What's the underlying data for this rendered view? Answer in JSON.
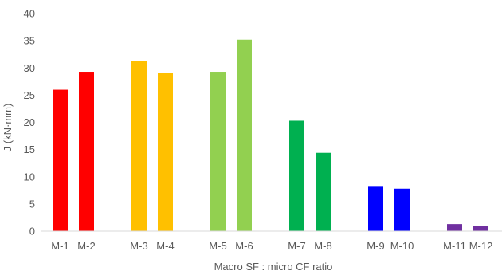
{
  "chart_data": {
    "type": "bar",
    "title": "",
    "xlabel": "Macro SF : micro CF ratio",
    "ylabel": "J (kN·mm)",
    "ylim": [
      0,
      40
    ],
    "yticks": [
      0,
      5,
      10,
      15,
      20,
      25,
      30,
      35,
      40
    ],
    "grid": false,
    "legend": "none",
    "categories": [
      "M-1",
      "M-2",
      "M-3",
      "M-4",
      "M-5",
      "M-6",
      "M-7",
      "M-8",
      "M-9",
      "M-10",
      "M-11",
      "M-12"
    ],
    "values": [
      26,
      29.3,
      31.3,
      29.1,
      29.3,
      35.2,
      20.3,
      14.4,
      8.3,
      7.8,
      1.3,
      1.0
    ],
    "colors": [
      "#ff0000",
      "#ff0000",
      "#ffc000",
      "#ffc000",
      "#92d050",
      "#92d050",
      "#00b050",
      "#00b050",
      "#0000ff",
      "#0000ff",
      "#7030a0",
      "#7030a0"
    ]
  }
}
